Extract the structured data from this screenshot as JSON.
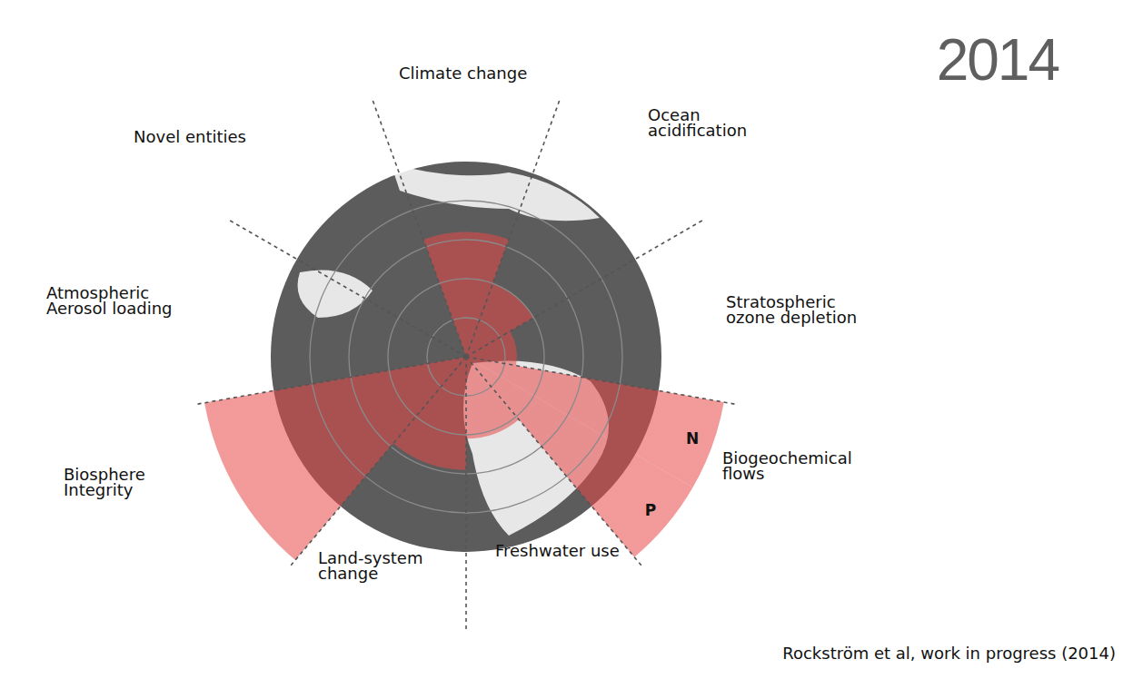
{
  "chart_data": {
    "type": "radial_bar",
    "title": "2014",
    "source": "Rockström et al, work in progress (2014)",
    "rlim": [
      0,
      7
    ],
    "rticks": [
      1,
      2,
      3,
      4
    ],
    "tick_labels": false,
    "sectors": [
      {
        "label": "Climate change",
        "value": 3.2
      },
      {
        "label": "Ocean acidification",
        "value": 2.0
      },
      {
        "label": "Stratospheric ozone depletion",
        "value": 1.3
      },
      {
        "label": "Biogeochemical flows",
        "parts": [
          {
            "label": "N",
            "value": 6.7
          },
          {
            "label": "P",
            "value": 6.7
          }
        ]
      },
      {
        "label": "Freshwater use",
        "value": 2.1
      },
      {
        "label": "Land-system change",
        "value": 2.9
      },
      {
        "label": "Biosphere Integrity",
        "value": 6.8
      },
      {
        "label": "Atmospheric Aerosol loading",
        "value": null
      },
      {
        "label": "Novel entities",
        "value": null
      }
    ]
  }
}
